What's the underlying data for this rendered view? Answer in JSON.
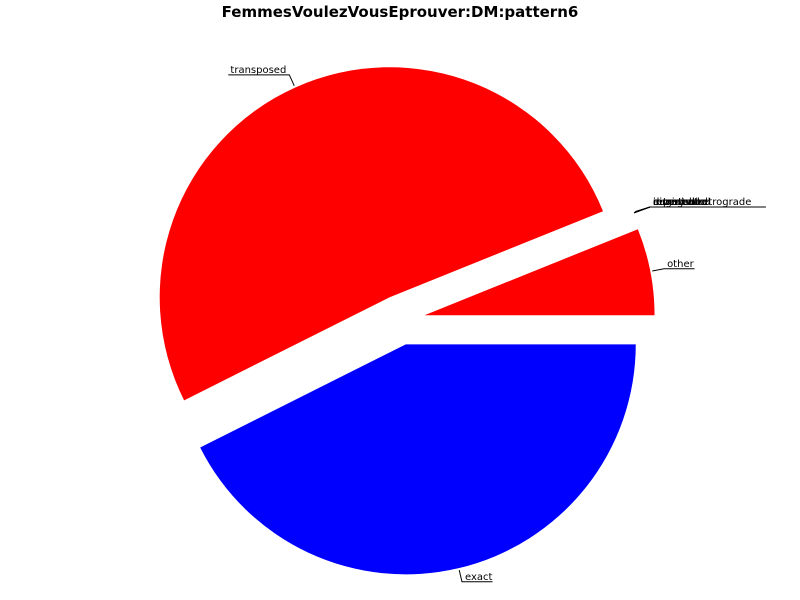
{
  "chart_data": {
    "type": "pie",
    "title": "FemmesVoulezVousEprouver:DM:pattern6",
    "slices": [
      {
        "label": "exact",
        "value": 42.6,
        "color": "#0000ff",
        "explode": true
      },
      {
        "label": "transposed",
        "value": 51.3,
        "color": "#ff0000",
        "explode": true
      },
      {
        "label": "other",
        "value": 6.1,
        "color": "#ff0000",
        "explode": true
      }
    ],
    "overlapping_labels": [
      "inverted",
      "retrograde",
      "inverted-retrograde",
      "augmented",
      "diminished",
      "repeated"
    ],
    "legend": "none"
  }
}
